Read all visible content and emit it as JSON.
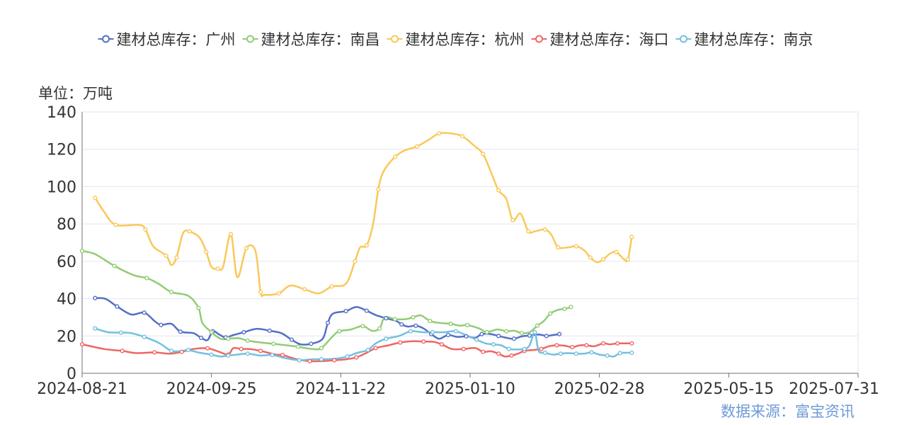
{
  "chart_data": {
    "type": "line",
    "unit_label": "单位：万吨",
    "source": "数据来源：富宝资讯",
    "ylim": [
      0,
      140
    ],
    "y_ticks": [
      0,
      20,
      40,
      60,
      80,
      100,
      120,
      140
    ],
    "x_tick_labels": [
      "2024-08-21",
      "2024-09-25",
      "2024-11-22",
      "2025-01-10",
      "2025-02-28",
      "2025-05-15",
      "2025-07-31"
    ],
    "legend_position": "top-center",
    "grid": true,
    "series": [
      {
        "name": "建材总库存：广州",
        "color": "#5470c6",
        "points": [
          [
            0.1,
            40.3
          ],
          [
            0.18,
            39.9
          ],
          [
            0.27,
            35.8
          ],
          [
            0.38,
            31.5
          ],
          [
            0.48,
            32.5
          ],
          [
            0.56,
            28
          ],
          [
            0.61,
            25.9
          ],
          [
            0.69,
            26.5
          ],
          [
            0.76,
            22.3
          ],
          [
            0.86,
            21.5
          ],
          [
            0.92,
            19
          ],
          [
            0.97,
            17.8
          ],
          [
            1.01,
            22.5
          ],
          [
            1.06,
            20.8
          ],
          [
            1.11,
            19.2
          ],
          [
            1.17,
            20.5
          ],
          [
            1.25,
            22
          ],
          [
            1.35,
            23.8
          ],
          [
            1.45,
            22.8
          ],
          [
            1.54,
            21.5
          ],
          [
            1.62,
            18
          ],
          [
            1.69,
            15.5
          ],
          [
            1.77,
            15.8
          ],
          [
            1.86,
            18.5
          ],
          [
            1.9,
            27
          ],
          [
            1.94,
            32
          ],
          [
            2.04,
            33.3
          ],
          [
            2.12,
            35.5
          ],
          [
            2.2,
            33.5
          ],
          [
            2.27,
            31.2
          ],
          [
            2.35,
            29.5
          ],
          [
            2.43,
            28
          ],
          [
            2.47,
            26.2
          ],
          [
            2.52,
            25
          ],
          [
            2.58,
            25.5
          ],
          [
            2.64,
            24
          ],
          [
            2.7,
            21
          ],
          [
            2.76,
            18.5
          ],
          [
            2.83,
            20.5
          ],
          [
            2.9,
            19.5
          ],
          [
            2.97,
            19.8
          ],
          [
            3.04,
            19
          ],
          [
            3.09,
            21
          ],
          [
            3.16,
            21
          ],
          [
            3.22,
            20
          ],
          [
            3.28,
            19
          ],
          [
            3.34,
            18.5
          ],
          [
            3.4,
            19.8
          ],
          [
            3.46,
            20.2
          ],
          [
            3.53,
            20.8
          ],
          [
            3.59,
            20
          ],
          [
            3.64,
            20.5
          ],
          [
            3.69,
            21
          ]
        ]
      },
      {
        "name": "建材总库存：南昌",
        "color": "#91cc75",
        "points": [
          [
            0,
            65.5
          ],
          [
            0.1,
            63.8
          ],
          [
            0.25,
            57.5
          ],
          [
            0.4,
            52.5
          ],
          [
            0.5,
            51
          ],
          [
            0.59,
            48
          ],
          [
            0.69,
            43.5
          ],
          [
            0.82,
            41.5
          ],
          [
            0.9,
            35
          ],
          [
            0.93,
            27
          ],
          [
            1.0,
            22
          ],
          [
            1.07,
            18.5
          ],
          [
            1.13,
            18.5
          ],
          [
            1.21,
            18.8
          ],
          [
            1.28,
            17.5
          ],
          [
            1.38,
            16.5
          ],
          [
            1.48,
            15.8
          ],
          [
            1.58,
            15
          ],
          [
            1.67,
            14.2
          ],
          [
            1.78,
            13
          ],
          [
            1.85,
            13.5
          ],
          [
            1.94,
            20
          ],
          [
            1.99,
            22.5
          ],
          [
            2.08,
            23.5
          ],
          [
            2.17,
            25.3
          ],
          [
            2.24,
            22.8
          ],
          [
            2.3,
            24
          ],
          [
            2.34,
            30
          ],
          [
            2.42,
            29
          ],
          [
            2.5,
            29
          ],
          [
            2.56,
            30
          ],
          [
            2.62,
            31
          ],
          [
            2.69,
            28
          ],
          [
            2.76,
            27
          ],
          [
            2.85,
            26.5
          ],
          [
            2.92,
            25.5
          ],
          [
            2.98,
            25.8
          ],
          [
            3.07,
            24
          ],
          [
            3.13,
            22
          ],
          [
            3.21,
            23.5
          ],
          [
            3.28,
            22.5
          ],
          [
            3.34,
            22.8
          ],
          [
            3.4,
            21.5
          ],
          [
            3.46,
            22
          ],
          [
            3.52,
            25.5
          ],
          [
            3.57,
            28
          ],
          [
            3.62,
            32
          ],
          [
            3.68,
            34
          ],
          [
            3.73,
            34.5
          ],
          [
            3.78,
            35.5
          ]
        ]
      },
      {
        "name": "建材总库存：杭州",
        "color": "#fac858",
        "points": [
          [
            0.1,
            94
          ],
          [
            0.17,
            86.5
          ],
          [
            0.26,
            79.5
          ],
          [
            0.44,
            79.5
          ],
          [
            0.49,
            77
          ],
          [
            0.55,
            68
          ],
          [
            0.65,
            63
          ],
          [
            0.69,
            58
          ],
          [
            0.73,
            62
          ],
          [
            0.78,
            75
          ],
          [
            0.83,
            76
          ],
          [
            0.91,
            72.5
          ],
          [
            0.96,
            65
          ],
          [
            1.0,
            57
          ],
          [
            1.05,
            56
          ],
          [
            1.09,
            57
          ],
          [
            1.15,
            74.5
          ],
          [
            1.2,
            51.5
          ],
          [
            1.27,
            67
          ],
          [
            1.34,
            65.5
          ],
          [
            1.38,
            43.5
          ],
          [
            1.41,
            42
          ],
          [
            1.52,
            42.8
          ],
          [
            1.61,
            47
          ],
          [
            1.72,
            45
          ],
          [
            1.83,
            42.8
          ],
          [
            1.93,
            46.5
          ],
          [
            2.04,
            48
          ],
          [
            2.11,
            60
          ],
          [
            2.15,
            67.5
          ],
          [
            2.2,
            68.5
          ],
          [
            2.25,
            80
          ],
          [
            2.29,
            98.5
          ],
          [
            2.33,
            108
          ],
          [
            2.42,
            116
          ],
          [
            2.5,
            119.5
          ],
          [
            2.59,
            121.5
          ],
          [
            2.69,
            125.5
          ],
          [
            2.76,
            128.5
          ],
          [
            2.85,
            128.5
          ],
          [
            2.94,
            127
          ],
          [
            3.03,
            122
          ],
          [
            3.1,
            117.5
          ],
          [
            3.16,
            108
          ],
          [
            3.22,
            98
          ],
          [
            3.28,
            93.5
          ],
          [
            3.33,
            82
          ],
          [
            3.39,
            85.5
          ],
          [
            3.45,
            76
          ],
          [
            3.5,
            76
          ],
          [
            3.58,
            77
          ],
          [
            3.63,
            74
          ],
          [
            3.68,
            67.5
          ],
          [
            3.76,
            67.5
          ],
          [
            3.82,
            68
          ],
          [
            3.88,
            66
          ],
          [
            3.93,
            62
          ],
          [
            3.98,
            59.5
          ],
          [
            4.03,
            61
          ],
          [
            4.08,
            64
          ],
          [
            4.13,
            65
          ],
          [
            4.19,
            61
          ],
          [
            4.22,
            61
          ],
          [
            4.25,
            73
          ]
        ]
      },
      {
        "name": "建材总库存：海口",
        "color": "#ee6666",
        "points": [
          [
            0,
            15.5
          ],
          [
            0.17,
            13
          ],
          [
            0.31,
            12
          ],
          [
            0.42,
            10.8
          ],
          [
            0.56,
            11.2
          ],
          [
            0.68,
            10.5
          ],
          [
            0.77,
            11.5
          ],
          [
            0.86,
            13
          ],
          [
            0.97,
            13.4
          ],
          [
            1.06,
            11.5
          ],
          [
            1.13,
            10
          ],
          [
            1.17,
            13.5
          ],
          [
            1.23,
            13
          ],
          [
            1.3,
            13
          ],
          [
            1.38,
            12
          ],
          [
            1.5,
            10
          ],
          [
            1.55,
            9.8
          ],
          [
            1.66,
            7.5
          ],
          [
            1.76,
            6.5
          ],
          [
            1.85,
            6.5
          ],
          [
            1.95,
            7
          ],
          [
            2.04,
            7.5
          ],
          [
            2.12,
            8.5
          ],
          [
            2.2,
            11
          ],
          [
            2.27,
            13.5
          ],
          [
            2.37,
            15
          ],
          [
            2.46,
            16.5
          ],
          [
            2.55,
            17.2
          ],
          [
            2.64,
            17
          ],
          [
            2.72,
            16.8
          ],
          [
            2.78,
            15.5
          ],
          [
            2.86,
            13
          ],
          [
            2.95,
            13
          ],
          [
            3.04,
            13.5
          ],
          [
            3.1,
            11.5
          ],
          [
            3.16,
            11.8
          ],
          [
            3.22,
            10.5
          ],
          [
            3.27,
            9
          ],
          [
            3.32,
            9.5
          ],
          [
            3.37,
            10.5
          ],
          [
            3.42,
            12
          ],
          [
            3.49,
            12.5
          ],
          [
            3.55,
            13
          ],
          [
            3.61,
            14.5
          ],
          [
            3.67,
            15
          ],
          [
            3.73,
            14.8
          ],
          [
            3.79,
            14
          ],
          [
            3.85,
            15
          ],
          [
            3.9,
            15
          ],
          [
            3.96,
            14.5
          ],
          [
            4.03,
            16
          ],
          [
            4.08,
            15.5
          ],
          [
            4.14,
            16
          ],
          [
            4.2,
            16
          ],
          [
            4.25,
            16
          ]
        ]
      },
      {
        "name": "建材总库存：南京",
        "color": "#73c0de",
        "points": [
          [
            0.1,
            24
          ],
          [
            0.2,
            22
          ],
          [
            0.3,
            21.8
          ],
          [
            0.38,
            21.5
          ],
          [
            0.48,
            19.5
          ],
          [
            0.6,
            16
          ],
          [
            0.69,
            12
          ],
          [
            0.77,
            12
          ],
          [
            0.82,
            12.5
          ],
          [
            0.91,
            11
          ],
          [
            1.0,
            10
          ],
          [
            1.07,
            9
          ],
          [
            1.13,
            9.5
          ],
          [
            1.2,
            10
          ],
          [
            1.28,
            10.5
          ],
          [
            1.38,
            9.5
          ],
          [
            1.47,
            9.8
          ],
          [
            1.58,
            8
          ],
          [
            1.68,
            7
          ],
          [
            1.78,
            7.5
          ],
          [
            1.85,
            7.5
          ],
          [
            1.96,
            7.8
          ],
          [
            2.05,
            9
          ],
          [
            2.13,
            11
          ],
          [
            2.21,
            12.5
          ],
          [
            2.27,
            16
          ],
          [
            2.35,
            18.5
          ],
          [
            2.45,
            20
          ],
          [
            2.54,
            22.5
          ],
          [
            2.63,
            22
          ],
          [
            2.71,
            22
          ],
          [
            2.8,
            22
          ],
          [
            2.89,
            22.5
          ],
          [
            2.98,
            20
          ],
          [
            3.05,
            18
          ],
          [
            3.12,
            16
          ],
          [
            3.18,
            15.5
          ],
          [
            3.24,
            15
          ],
          [
            3.3,
            13
          ],
          [
            3.36,
            12.8
          ],
          [
            3.42,
            13
          ],
          [
            3.46,
            15
          ],
          [
            3.5,
            22
          ],
          [
            3.53,
            12
          ],
          [
            3.58,
            11
          ],
          [
            3.64,
            10
          ],
          [
            3.7,
            10.5
          ],
          [
            3.76,
            10.8
          ],
          [
            3.82,
            10.5
          ],
          [
            3.88,
            10.5
          ],
          [
            3.94,
            11.2
          ],
          [
            4.0,
            10
          ],
          [
            4.06,
            9.5
          ],
          [
            4.11,
            9
          ],
          [
            4.16,
            10.8
          ],
          [
            4.22,
            11
          ],
          [
            4.25,
            11
          ]
        ]
      }
    ]
  }
}
